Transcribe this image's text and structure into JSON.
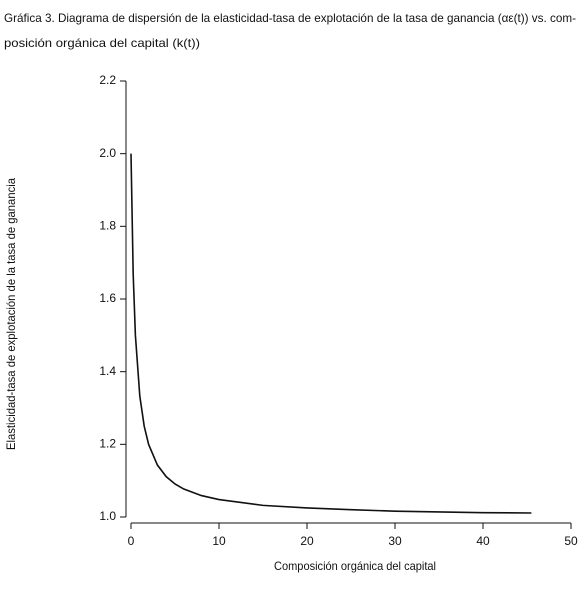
{
  "chart_data": {
    "type": "line",
    "title_lines": [
      "Gráfica 3. Diagrama de dispersión de la elasticidad-tasa de explotación de la tasa de ganancia (αε(t)) vs. com-",
      "posición orgánica del capital (k(t))"
    ],
    "x_label": "Composición orgánica del capital",
    "y_label": "Elasticidad-tasa de explotación de la tasa de ganancia",
    "x": [
      0,
      0.25,
      0.5,
      1,
      1.5,
      2,
      3,
      4,
      5,
      6,
      8,
      10,
      15,
      20,
      25,
      30,
      35,
      40,
      45.5
    ],
    "series": [
      {
        "color": "#111111",
        "values": [
          2.0,
          1.667,
          1.5,
          1.333,
          1.25,
          1.2,
          1.143,
          1.111,
          1.091,
          1.077,
          1.059,
          1.048,
          1.032,
          1.025,
          1.02,
          1.016,
          1.014,
          1.012,
          1.011
        ]
      }
    ],
    "xlim": [
      0,
      50
    ],
    "xticks": [
      0,
      10,
      20,
      30,
      40,
      50
    ],
    "ylim": [
      1.0,
      2.2
    ],
    "yticks": [
      {
        "value": 1.0,
        "label": "1.0"
      },
      1.2,
      1.4,
      1.6,
      1.8,
      {
        "value": 2.0,
        "label": "2.0"
      },
      2.2
    ],
    "grid": false
  }
}
